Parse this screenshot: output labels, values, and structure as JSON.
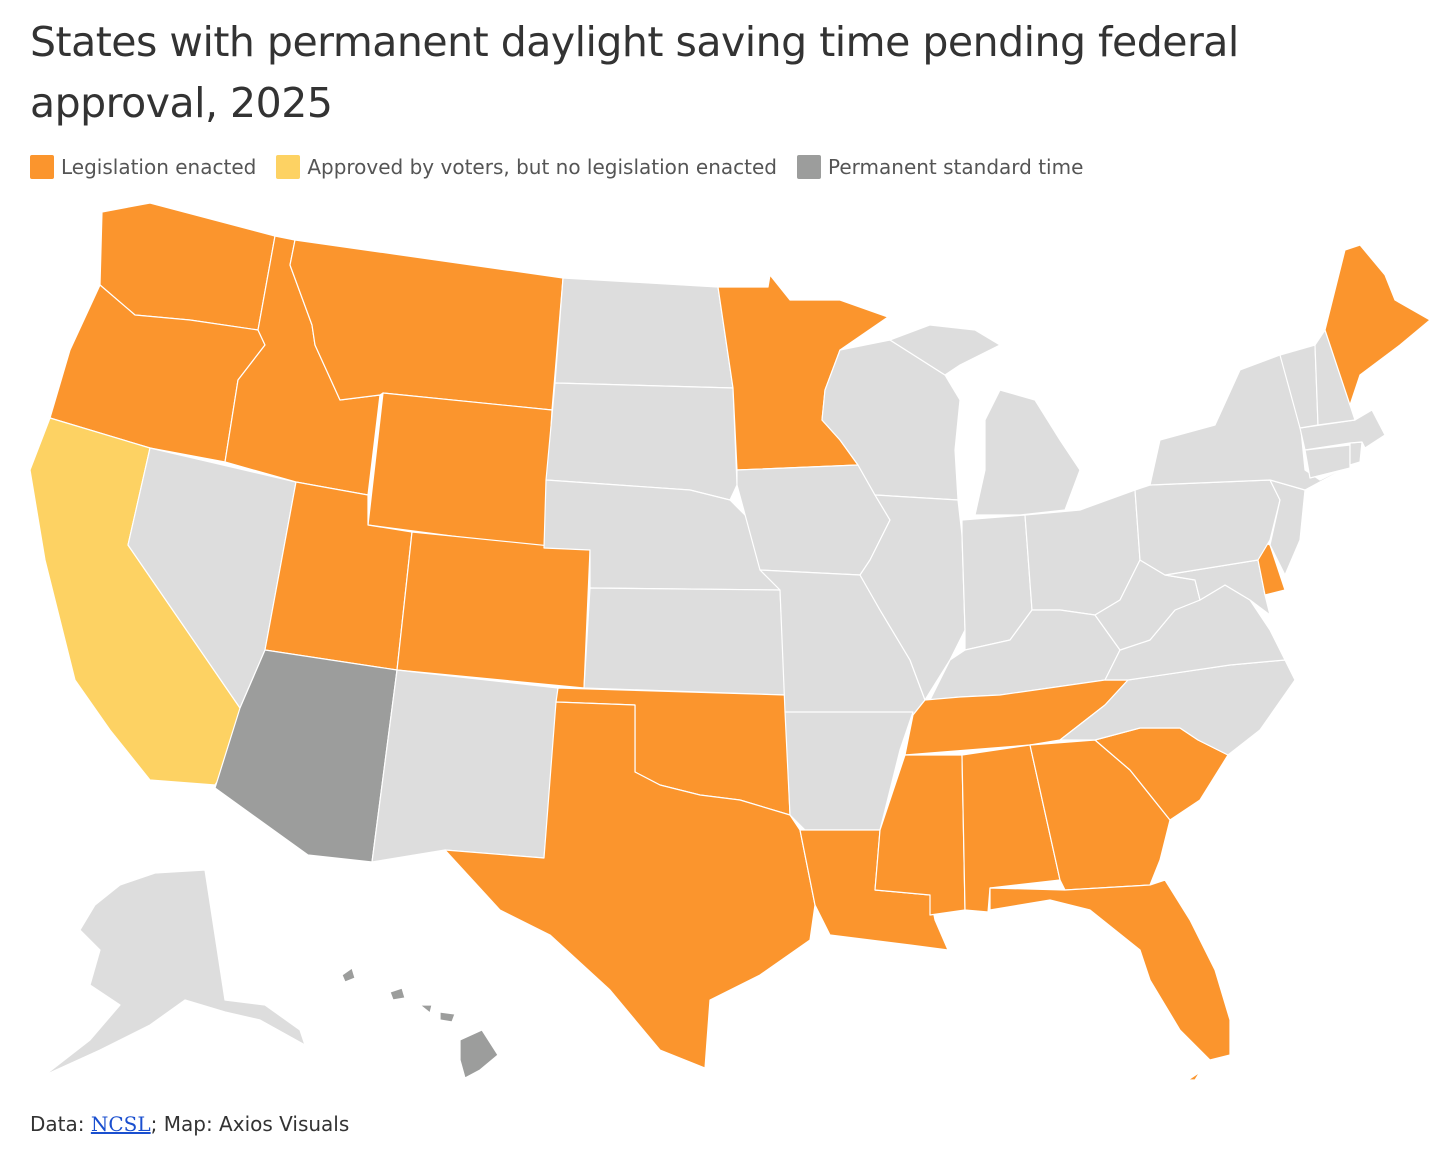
{
  "title": "States with permanent daylight saving time pending federal approval, 2025",
  "legend": [
    {
      "key": "enacted",
      "label": "Legislation enacted",
      "color": "#fb952d"
    },
    {
      "key": "voters",
      "label": "Approved by voters, but no legislation enacted",
      "color": "#fdd263"
    },
    {
      "key": "standard",
      "label": "Permanent standard time",
      "color": "#9c9d9c"
    }
  ],
  "colors": {
    "none": "#dddddd"
  },
  "states": {
    "WA": "enacted",
    "OR": "enacted",
    "CA": "voters",
    "NV": "none",
    "ID": "enacted",
    "MT": "enacted",
    "WY": "enacted",
    "UT": "enacted",
    "CO": "enacted",
    "AZ": "standard",
    "NM": "none",
    "ND": "none",
    "SD": "none",
    "NE": "none",
    "KS": "none",
    "OK": "enacted",
    "TX": "enacted",
    "MN": "enacted",
    "IA": "none",
    "MO": "none",
    "AR": "none",
    "LA": "enacted",
    "WI": "none",
    "IL": "none",
    "MI": "none",
    "IN": "none",
    "OH": "none",
    "KY": "none",
    "TN": "enacted",
    "MS": "enacted",
    "AL": "enacted",
    "GA": "enacted",
    "FL": "enacted",
    "SC": "enacted",
    "NC": "none",
    "VA": "none",
    "WV": "none",
    "MD": "none",
    "DE": "enacted",
    "PA": "none",
    "NJ": "none",
    "NY": "none",
    "CT": "none",
    "RI": "none",
    "MA": "none",
    "VT": "none",
    "NH": "none",
    "ME": "enacted",
    "AK": "none",
    "HI": "standard"
  },
  "footer": {
    "prefix": "Data: ",
    "source_link": "NCSL",
    "suffix": "; Map: Axios Visuals"
  }
}
